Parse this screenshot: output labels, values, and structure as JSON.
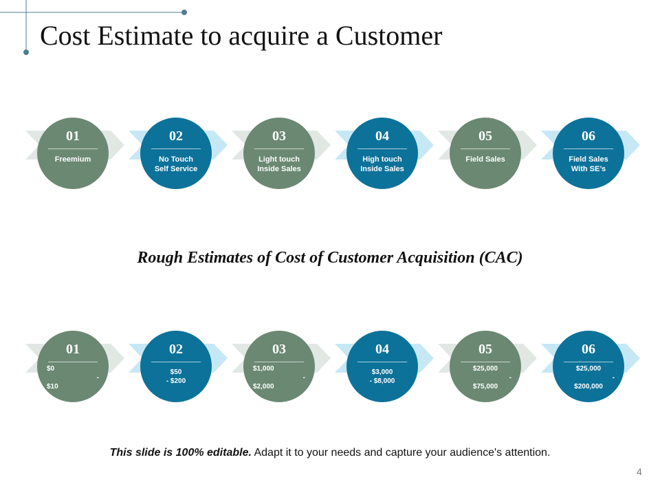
{
  "title": "Cost Estimate to acquire a Customer",
  "colors": {
    "green": "#6b8872",
    "blue": "#0c729a",
    "arrow_light": "#e1e8e4",
    "arrow_blue": "#c6e8f5",
    "accent_line": "#4f7c95"
  },
  "channels": [
    {
      "num": "01",
      "label": "Freemium",
      "color": "green"
    },
    {
      "num": "02",
      "label": "No Touch\nSelf Service",
      "color": "blue"
    },
    {
      "num": "03",
      "label": "Light touch\nInside Sales",
      "color": "green"
    },
    {
      "num": "04",
      "label": "High touch\nInside Sales",
      "color": "blue"
    },
    {
      "num": "05",
      "label": "Field Sales",
      "color": "green"
    },
    {
      "num": "06",
      "label": "Field Sales\nWith SE’s",
      "color": "blue"
    }
  ],
  "subtitle": "Rough Estimates of Cost of Customer Acquisition (CAC)",
  "estimates": [
    {
      "num": "01",
      "color": "green",
      "style": "stacked",
      "lines": [
        "$0",
        "-",
        "$10"
      ]
    },
    {
      "num": "02",
      "color": "blue",
      "style": "centered",
      "lines": [
        "$50",
        "- $200"
      ]
    },
    {
      "num": "03",
      "color": "green",
      "style": "stacked",
      "lines": [
        "$1,000",
        "-",
        "$2,000"
      ]
    },
    {
      "num": "04",
      "color": "blue",
      "style": "centered",
      "lines": [
        "$3,000",
        "- $8,000"
      ]
    },
    {
      "num": "05",
      "color": "green",
      "style": "center3",
      "lines": [
        "$25,000",
        "-",
        "$75,000"
      ]
    },
    {
      "num": "06",
      "color": "blue",
      "style": "stacked",
      "lines": [
        "$25,000",
        "-",
        "$200,000"
      ]
    }
  ],
  "footer": {
    "bold": "This slide is 100% editable.",
    "normal": " Adapt it to your needs and capture your audience's attention."
  },
  "page_number": "4"
}
